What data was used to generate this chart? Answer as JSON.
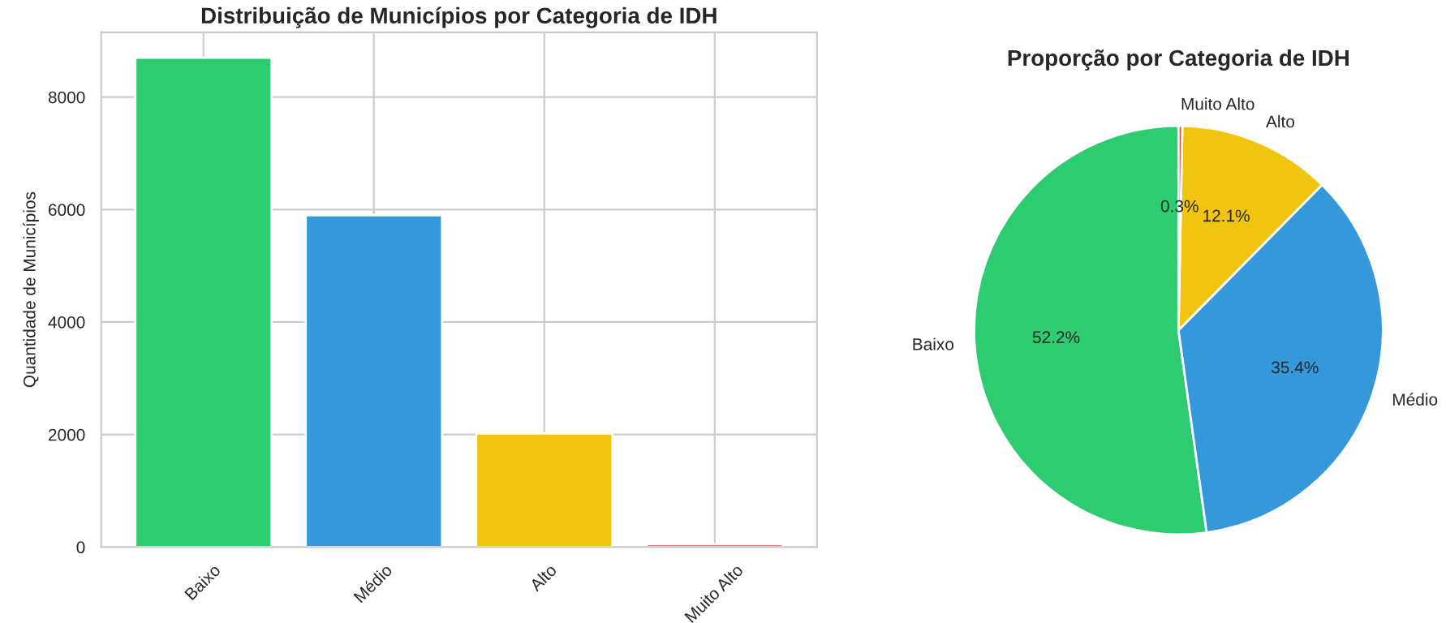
{
  "chart_data": [
    {
      "type": "bar",
      "title": "Distribuição de Municípios por Categoria de IDH",
      "ylabel": "Quantidade de Municípios",
      "categories": [
        "Baixo",
        "Médio",
        "Alto",
        "Muito Alto"
      ],
      "values": [
        8700,
        5900,
        2020,
        50
      ],
      "colors": [
        "#2ecc71",
        "#3498db",
        "#f1c40f",
        "#e74c3c"
      ],
      "ylim": [
        0,
        9150
      ],
      "yticks": [
        0,
        2000,
        4000,
        6000,
        8000
      ],
      "grid": true
    },
    {
      "type": "pie",
      "title": "Proporção por Categoria de IDH",
      "categories": [
        "Baixo",
        "Médio",
        "Alto",
        "Muito Alto"
      ],
      "values": [
        52.2,
        35.4,
        12.1,
        0.3
      ],
      "colors": [
        "#2ecc71",
        "#3498db",
        "#f1c40f",
        "#e74c3c"
      ],
      "value_labels": [
        "52.2%",
        "35.4%",
        "12.1%",
        "0.3%"
      ]
    }
  ]
}
